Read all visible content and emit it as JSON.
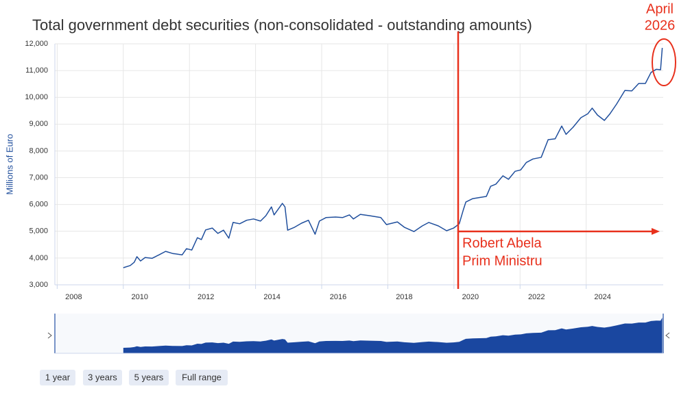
{
  "chart_data": {
    "type": "line",
    "title": "Total government debt securities (non-consolidated - outstanding amounts)",
    "y_label": "Millions of Euro",
    "color": "#1f4e9c",
    "navigator_color": "#1a47a0",
    "grid": true,
    "xlim": [
      2007.93,
      2026.33
    ],
    "xticks": [
      2008,
      2010,
      2012,
      2014,
      2016,
      2018,
      2020,
      2022,
      2024
    ],
    "ylim": [
      3000,
      12000
    ],
    "yticks": [
      {
        "value": 3000,
        "label": "3,000"
      },
      {
        "value": 4000,
        "label": "4,000"
      },
      {
        "value": 5000,
        "label": "5,000"
      },
      {
        "value": 6000,
        "label": "6,000"
      },
      {
        "value": 7000,
        "label": "7,000"
      },
      {
        "value": 8000,
        "label": "8,000"
      },
      {
        "value": 9000,
        "label": "9,000"
      },
      {
        "value": 10000,
        "label": "10,000"
      },
      {
        "value": 11000,
        "label": "11,000"
      },
      {
        "value": 12000,
        "label": "12,000"
      }
    ],
    "x": [
      2010.0,
      2010.21,
      2010.33,
      2010.41,
      2010.52,
      2010.66,
      2010.87,
      2011.08,
      2011.28,
      2011.49,
      2011.78,
      2011.91,
      2012.07,
      2012.24,
      2012.36,
      2012.49,
      2012.69,
      2012.86,
      2013.03,
      2013.19,
      2013.32,
      2013.52,
      2013.73,
      2013.94,
      2014.15,
      2014.31,
      2014.48,
      2014.56,
      2014.81,
      2014.89,
      2014.97,
      2015.18,
      2015.39,
      2015.6,
      2015.8,
      2015.93,
      2016.13,
      2016.42,
      2016.63,
      2016.84,
      2016.96,
      2017.17,
      2017.46,
      2017.79,
      2017.96,
      2018.29,
      2018.5,
      2018.79,
      2019.04,
      2019.24,
      2019.53,
      2019.78,
      2019.99,
      2020.16,
      2020.28,
      2020.36,
      2020.57,
      2020.98,
      2021.11,
      2021.27,
      2021.48,
      2021.65,
      2021.85,
      2022.02,
      2022.19,
      2022.39,
      2022.64,
      2022.85,
      2023.06,
      2023.26,
      2023.39,
      2023.6,
      2023.84,
      2024.05,
      2024.18,
      2024.34,
      2024.55,
      2024.72,
      2024.92,
      2025.17,
      2025.38,
      2025.59,
      2025.79,
      2025.96,
      2026.12,
      2026.25,
      2026.3
    ],
    "values": [
      3640,
      3720,
      3840,
      4050,
      3890,
      4020,
      3990,
      4120,
      4250,
      4170,
      4120,
      4350,
      4300,
      4760,
      4690,
      5050,
      5120,
      4920,
      5040,
      4740,
      5330,
      5280,
      5410,
      5460,
      5380,
      5580,
      5910,
      5610,
      6040,
      5910,
      5040,
      5150,
      5300,
      5410,
      4890,
      5380,
      5510,
      5530,
      5510,
      5610,
      5460,
      5630,
      5580,
      5510,
      5250,
      5350,
      5150,
      4990,
      5200,
      5330,
      5200,
      5020,
      5120,
      5280,
      5790,
      6090,
      6220,
      6300,
      6680,
      6760,
      7070,
      6940,
      7240,
      7290,
      7570,
      7700,
      7760,
      8420,
      8450,
      8930,
      8620,
      8880,
      9240,
      9390,
      9600,
      9340,
      9140,
      9390,
      9750,
      10260,
      10240,
      10520,
      10520,
      10930,
      11050,
      11030,
      11850
    ],
    "annotations": [
      {
        "lines": [
          "April",
          "2026"
        ],
        "color": "#e8301c"
      },
      {
        "lines": [
          "Robert Abela",
          "Prim Ministru"
        ],
        "color": "#e8301c"
      }
    ],
    "range_buttons": [
      "1 year",
      "3 years",
      "5 years",
      "Full range"
    ]
  }
}
